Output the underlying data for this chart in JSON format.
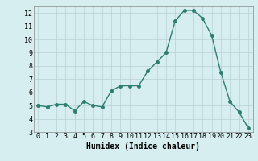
{
  "x": [
    0,
    1,
    2,
    3,
    4,
    5,
    6,
    7,
    8,
    9,
    10,
    11,
    12,
    13,
    14,
    15,
    16,
    17,
    18,
    19,
    20,
    21,
    22,
    23
  ],
  "y": [
    5.0,
    4.9,
    5.1,
    5.1,
    4.6,
    5.3,
    5.0,
    4.9,
    6.1,
    6.5,
    6.5,
    6.5,
    7.6,
    8.3,
    9.0,
    11.4,
    12.2,
    12.2,
    11.6,
    10.3,
    7.5,
    5.3,
    4.5,
    3.3
  ],
  "line_color": "#2e7d6e",
  "marker_color": "#2e7d6e",
  "bg_color": "#d6eef0",
  "grid_color": "#b8d0d4",
  "xlabel": "Humidex (Indice chaleur)",
  "xlim": [
    -0.5,
    23.5
  ],
  "ylim": [
    3,
    12.5
  ],
  "yticks": [
    3,
    4,
    5,
    6,
    7,
    8,
    9,
    10,
    11,
    12
  ],
  "xticks": [
    0,
    1,
    2,
    3,
    4,
    5,
    6,
    7,
    8,
    9,
    10,
    11,
    12,
    13,
    14,
    15,
    16,
    17,
    18,
    19,
    20,
    21,
    22,
    23
  ],
  "marker_size": 2.5,
  "line_width": 1.0,
  "tick_fontsize": 6.0,
  "xlabel_fontsize": 7.0
}
